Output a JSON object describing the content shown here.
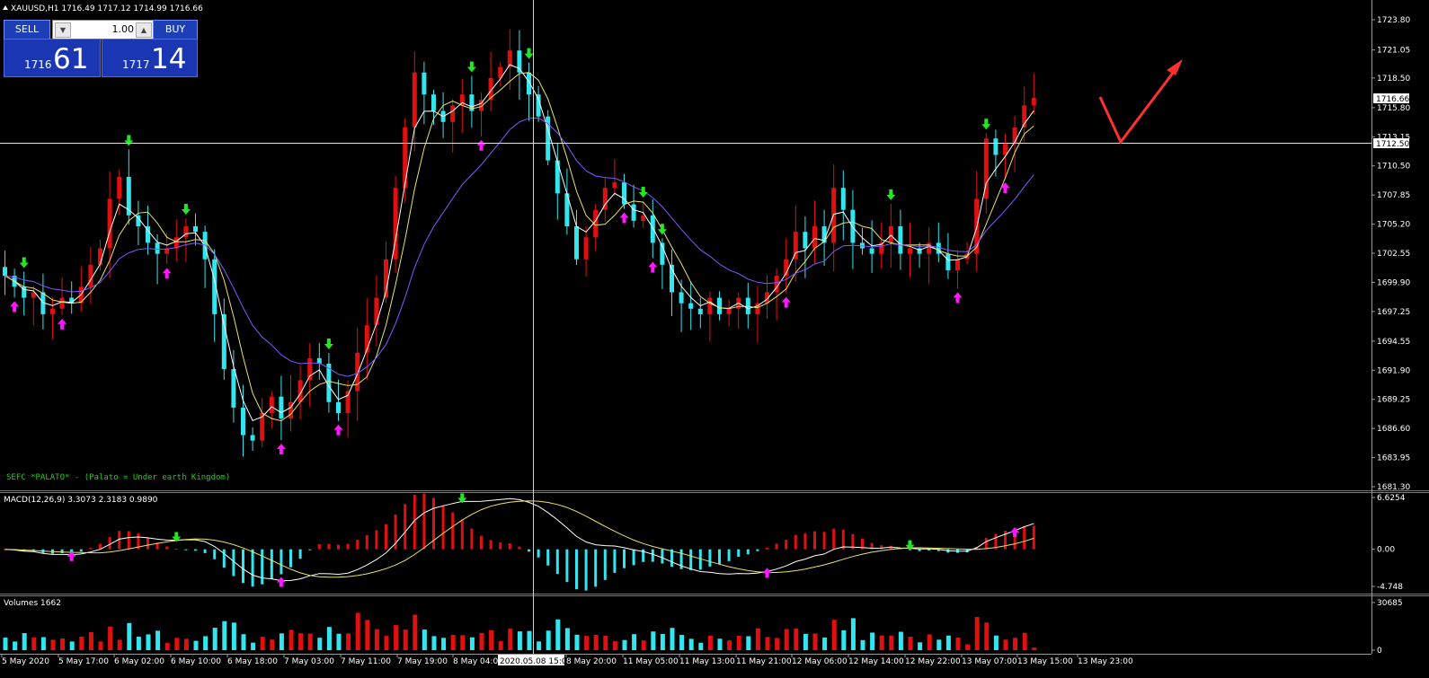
{
  "header": {
    "symbol_line": "XAUUSD,H1  1716.49 1717.12 1714.99 1716.66",
    "macd_label": "MACD(12,26,9) 3.3073 2.3183 0.9890",
    "volumes_label": "Volumes 1662",
    "indicator_note": "SEFC *PALATO* - (Palato = Under earth Kingdom)"
  },
  "trade_panel": {
    "sell_label": "SELL",
    "buy_label": "BUY",
    "lot_value": "1.00",
    "sell_price_small": "1716",
    "sell_price_big": "61",
    "buy_price_small": "1717",
    "buy_price_big": "14"
  },
  "colors": {
    "bull": "#e01010",
    "bear": "#32e6f0",
    "ma_fast": "#ffffff",
    "ma_mid": "#e8e36a",
    "ma_slow": "#7b5cff",
    "arrow_buy": "#ff18ff",
    "arrow_sell": "#22e822",
    "annotation": "#ff3030"
  },
  "chart_data": [
    {
      "type": "candlestick",
      "title": "XAUUSD,H1",
      "ylim": [
        1681.3,
        1725.2
      ],
      "y_ticks": [
        "1723.80",
        "1721.05",
        "1718.50",
        "1715.80",
        "1713.15",
        "1710.50",
        "1707.85",
        "1705.20",
        "1702.55",
        "1699.90",
        "1697.25",
        "1694.55",
        "1691.90",
        "1689.25",
        "1686.60",
        "1683.95",
        "1681.30"
      ],
      "current_price": "1716.66",
      "horizontal_line": "1712.50",
      "x_labels": [
        "5 May 2020",
        "5 May 17:00",
        "6 May 02:00",
        "6 May 10:00",
        "6 May 18:00",
        "7 May 03:00",
        "7 May 11:00",
        "7 May 19:00",
        "8 May 04:00",
        "2020.05.08 15:00",
        "8 May 20:00",
        "11 May 05:00",
        "11 May 13:00",
        "11 May 21:00",
        "12 May 06:00",
        "12 May 14:00",
        "12 May 22:00",
        "13 May 07:00",
        "13 May 15:00",
        "13 May 23:00"
      ],
      "close_path": [
        1700.5,
        1699.5,
        1698.5,
        1699.0,
        1697.0,
        1697.5,
        1698.5,
        1698.0,
        1699.5,
        1701.5,
        1703.0,
        1707.5,
        1709.5,
        1706.0,
        1705.0,
        1703.5,
        1702.5,
        1703.0,
        1704.0,
        1705.0,
        1704.5,
        1702.0,
        1697.0,
        1692.0,
        1688.5,
        1686.0,
        1685.5,
        1688.0,
        1689.5,
        1687.5,
        1689.0,
        1691.0,
        1693.0,
        1692.5,
        1689.0,
        1688.0,
        1690.0,
        1693.5,
        1696.0,
        1698.5,
        1702.0,
        1708.5,
        1714.0,
        1719.0,
        1717.0,
        1715.5,
        1714.5,
        1716.0,
        1717.0,
        1715.5,
        1716.5,
        1718.5,
        1719.5,
        1721.0,
        1719.0,
        1717.0,
        1715.0,
        1711.0,
        1708.0,
        1705.0,
        1702.0,
        1704.0,
        1706.5,
        1708.5,
        1709.0,
        1707.0,
        1705.5,
        1706.0,
        1703.5,
        1701.5,
        1699.0,
        1698.0,
        1697.5,
        1697.0,
        1698.5,
        1697.0,
        1697.5,
        1698.5,
        1697.0,
        1698.0,
        1699.0,
        1700.5,
        1702.0,
        1704.5,
        1703.0,
        1705.0,
        1703.5,
        1708.5,
        1706.5,
        1703.5,
        1703.0,
        1702.5,
        1703.5,
        1705.0,
        1702.5,
        1703.0,
        1702.5,
        1703.5,
        1702.5,
        1701.0,
        1702.0,
        1702.5,
        1707.5,
        1713.0,
        1711.5,
        1712.5,
        1714.0,
        1716.0,
        1716.7
      ]
    },
    {
      "type": "macd",
      "title": "MACD(12,26,9)",
      "values": {
        "main": "3.3073",
        "signal": "2.3183",
        "histogram": "0.9890"
      },
      "y_ticks": [
        "6.6254",
        "0.00",
        "-4.748"
      ],
      "ylim": [
        -4.748,
        6.6254
      ]
    },
    {
      "type": "bar",
      "title": "Volumes",
      "current": "1662",
      "y_ticks": [
        "30685",
        "0"
      ],
      "ylim": [
        0,
        30685
      ]
    }
  ]
}
